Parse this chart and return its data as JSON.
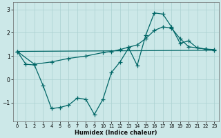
{
  "xlabel": "Humidex (Indice chaleur)",
  "bg_color": "#cce8e8",
  "grid_color": "#aad0d0",
  "line_color": "#006666",
  "xlim": [
    -0.5,
    23.5
  ],
  "ylim": [
    -1.8,
    3.3
  ],
  "yticks": [
    -1,
    0,
    1,
    2,
    3
  ],
  "xticks": [
    0,
    1,
    2,
    3,
    4,
    5,
    6,
    7,
    8,
    9,
    10,
    11,
    12,
    13,
    14,
    15,
    16,
    17,
    18,
    19,
    20,
    21,
    22,
    23
  ],
  "line1_x": [
    0,
    1,
    2,
    3,
    4,
    5,
    6,
    7,
    8,
    9,
    10,
    11,
    12,
    13,
    14,
    15,
    16,
    17,
    18,
    19,
    20,
    21,
    22,
    23
  ],
  "line1_y": [
    1.2,
    0.65,
    0.62,
    -0.25,
    -1.25,
    -1.2,
    -1.1,
    -0.8,
    -0.85,
    -1.5,
    -0.85,
    0.3,
    0.75,
    1.35,
    0.6,
    1.9,
    2.85,
    2.8,
    2.25,
    1.55,
    1.65,
    1.35,
    1.3,
    1.25
  ],
  "line2_x": [
    0,
    2,
    4,
    6,
    8,
    10,
    11,
    12,
    13,
    14,
    15,
    16,
    17,
    18,
    19,
    20,
    21,
    22,
    23
  ],
  "line2_y": [
    1.2,
    0.65,
    0.75,
    0.9,
    1.0,
    1.15,
    1.2,
    1.28,
    1.38,
    1.48,
    1.75,
    2.1,
    2.25,
    2.2,
    1.75,
    1.4,
    1.35,
    1.3,
    1.28
  ],
  "line3_x": [
    0,
    23
  ],
  "line3_y": [
    1.2,
    1.25
  ]
}
